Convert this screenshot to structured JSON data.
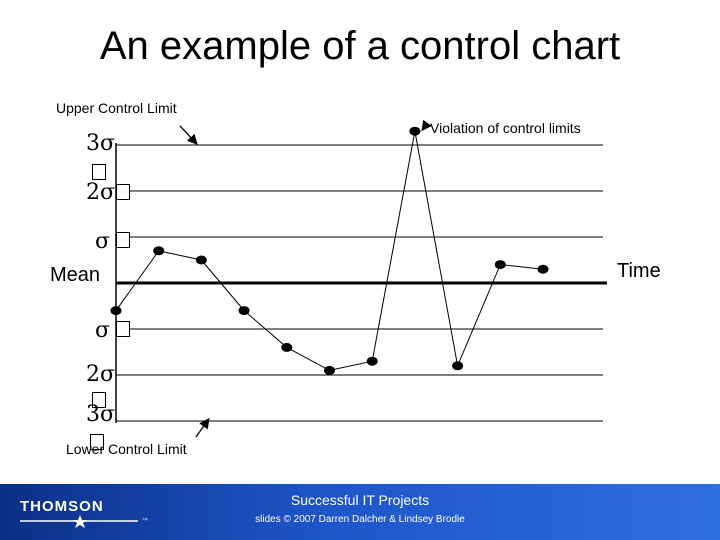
{
  "title": "An example of a control chart",
  "labels": {
    "upper_control_limit": "Upper Control Limit",
    "lower_control_limit": "Lower Control Limit",
    "violation": "Violation of control limits",
    "mean": "Mean",
    "time": "Time",
    "sigma_3": "3σ",
    "sigma_2": "2σ",
    "sigma_1": "σ"
  },
  "chart_data": {
    "type": "line",
    "y_levels_sigma": [
      3,
      2,
      1,
      0,
      -1,
      -2,
      -3
    ],
    "values": [
      -0.6,
      0.7,
      0.5,
      -0.6,
      -1.4,
      -1.9,
      -1.7,
      3.3,
      -1.8,
      0.4,
      0.3
    ],
    "violation_index": 7
  },
  "footer": {
    "logo": "THOMSON",
    "tm": "™",
    "course_title": "Successful IT Projects",
    "credit": "slides © 2007 Darren Dalcher & Lindsey Brodie"
  },
  "colors": {
    "footer_dark": "#0b2f86",
    "footer_light": "#2f6ee0"
  }
}
